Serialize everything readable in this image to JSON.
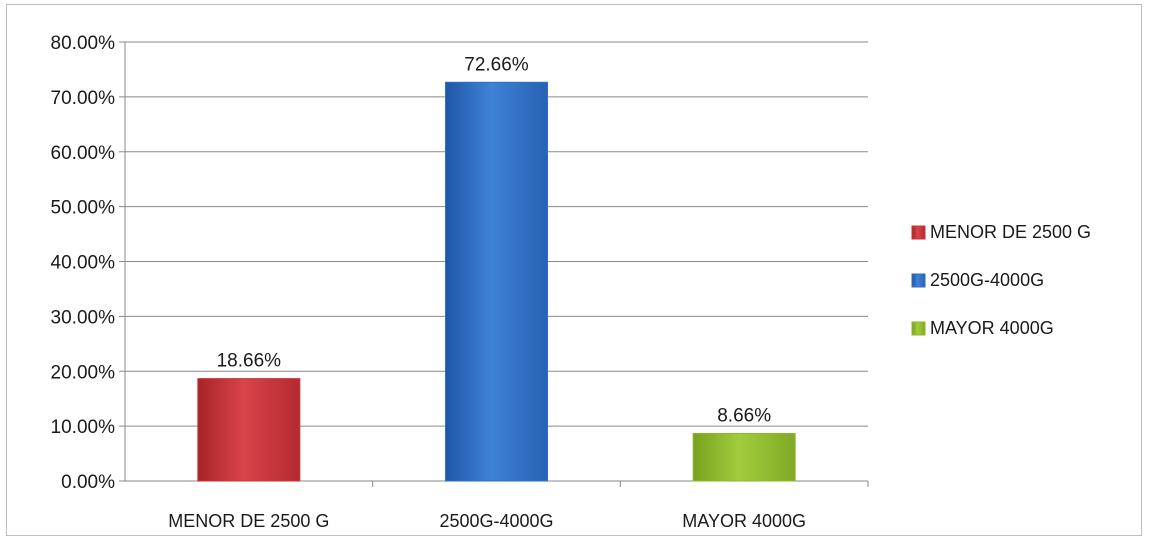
{
  "chart_data": {
    "type": "bar",
    "title": "",
    "xlabel": "",
    "ylabel": "",
    "categories": [
      "MENOR DE 2500 G",
      "2500G-4000G",
      "MAYOR 4000G"
    ],
    "values": [
      0.1866,
      0.7266,
      0.0866
    ],
    "data_labels": [
      "18.66%",
      "72.66%",
      "8.66%"
    ],
    "ylim": [
      0,
      0.8
    ],
    "y_ticks": [
      0,
      0.1,
      0.2,
      0.3,
      0.4,
      0.5,
      0.6,
      0.7,
      0.8
    ],
    "y_tick_labels": [
      "0.00%",
      "10.00%",
      "20.00%",
      "30.00%",
      "40.00%",
      "50.00%",
      "60.00%",
      "70.00%",
      "80.00%"
    ],
    "grid": true,
    "legend": {
      "position": "right",
      "entries": [
        "MENOR DE 2500 G",
        "2500G-4000G",
        "MAYOR 4000G"
      ]
    },
    "colors": [
      "#c8353a",
      "#2f6fc4",
      "#8cb82b"
    ]
  }
}
